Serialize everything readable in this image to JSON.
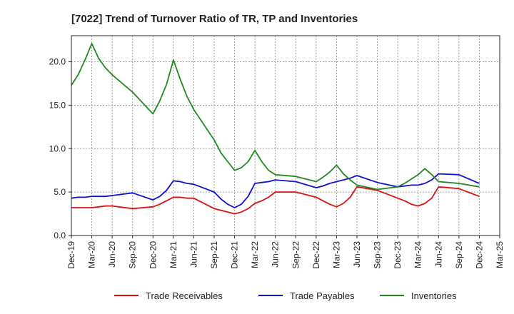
{
  "chart_data": {
    "type": "line",
    "title": "[7022]  Trend of Turnover Ratio of TR, TP and Inventories",
    "xlabel": "",
    "ylabel": "",
    "ylim": [
      0,
      23
    ],
    "yticks": [
      "0.0",
      "5.0",
      "10.0",
      "15.0",
      "20.0"
    ],
    "ytick_values": [
      0,
      5,
      10,
      15,
      20
    ],
    "xticks": [
      "Dec-19",
      "Mar-20",
      "Jun-20",
      "Sep-20",
      "Dec-20",
      "Mar-21",
      "Jun-21",
      "Sep-21",
      "Dec-21",
      "Mar-22",
      "Jun-22",
      "Sep-22",
      "Dec-22",
      "Mar-23",
      "Jun-23",
      "Sep-23",
      "Dec-23",
      "Mar-24",
      "Jun-24",
      "Sep-24",
      "Dec-24",
      "Mar-25"
    ],
    "grid": "both-dashed",
    "legend_position": "bottom",
    "x": [
      "Dec-19",
      "Jan-20",
      "Feb-20",
      "Mar-20",
      "Apr-20",
      "May-20",
      "Jun-20",
      "Sep-20",
      "Dec-20",
      "Jan-21",
      "Feb-21",
      "Mar-21",
      "Apr-21",
      "May-21",
      "Jun-21",
      "Sep-21",
      "Oct-21",
      "Nov-21",
      "Dec-21",
      "Jan-22",
      "Feb-22",
      "Mar-22",
      "Apr-22",
      "May-22",
      "Jun-22",
      "Sep-22",
      "Dec-22",
      "Jan-23",
      "Feb-23",
      "Mar-23",
      "Apr-23",
      "May-23",
      "Jun-23",
      "Sep-23",
      "Dec-23",
      "Jan-24",
      "Feb-24",
      "Mar-24",
      "Apr-24",
      "May-24",
      "Jun-24",
      "Sep-24",
      "Dec-24"
    ],
    "x_index": [
      0,
      1,
      2,
      3,
      4,
      5,
      6,
      9,
      12,
      13,
      14,
      15,
      16,
      17,
      18,
      21,
      22,
      23,
      24,
      25,
      26,
      27,
      28,
      29,
      30,
      33,
      36,
      37,
      38,
      39,
      40,
      41,
      42,
      45,
      48,
      49,
      50,
      51,
      52,
      53,
      54,
      57,
      60
    ],
    "series": [
      {
        "name": "Trade Receivables",
        "color": "#dd1111",
        "values": [
          3.2,
          3.2,
          3.2,
          3.2,
          3.3,
          3.4,
          3.4,
          3.1,
          3.3,
          3.6,
          4.0,
          4.4,
          4.4,
          4.3,
          4.3,
          3.1,
          2.9,
          2.7,
          2.5,
          2.7,
          3.1,
          3.7,
          4.0,
          4.4,
          5.0,
          5.0,
          4.4,
          4.0,
          3.6,
          3.3,
          3.7,
          4.4,
          5.6,
          5.2,
          4.3,
          4.0,
          3.6,
          3.4,
          3.7,
          4.3,
          5.6,
          5.4,
          4.5
        ]
      },
      {
        "name": "Trade Payables",
        "color": "#1111cc",
        "values": [
          4.3,
          4.4,
          4.4,
          4.5,
          4.5,
          4.5,
          4.6,
          4.9,
          4.1,
          4.5,
          5.2,
          6.3,
          6.2,
          6.0,
          5.9,
          5.0,
          4.2,
          3.6,
          3.2,
          3.6,
          4.5,
          6.0,
          6.1,
          6.2,
          6.4,
          6.2,
          5.5,
          5.7,
          6.0,
          6.2,
          6.4,
          6.6,
          6.9,
          6.1,
          5.6,
          5.7,
          5.8,
          5.8,
          6.0,
          6.4,
          7.1,
          7.0,
          6.0
        ]
      },
      {
        "name": "Inventories",
        "color": "#228822",
        "values": [
          17.3,
          18.5,
          20.2,
          22.1,
          20.4,
          19.3,
          18.5,
          16.5,
          14.0,
          15.5,
          17.4,
          20.2,
          18.0,
          16.0,
          14.5,
          11.0,
          9.5,
          8.5,
          7.5,
          7.8,
          8.5,
          9.8,
          8.5,
          7.5,
          7.0,
          6.8,
          6.2,
          6.7,
          7.3,
          8.1,
          7.1,
          6.4,
          5.8,
          5.3,
          5.6,
          6.0,
          6.5,
          7.0,
          7.7,
          7.0,
          6.2,
          6.0,
          5.6
        ]
      }
    ]
  }
}
